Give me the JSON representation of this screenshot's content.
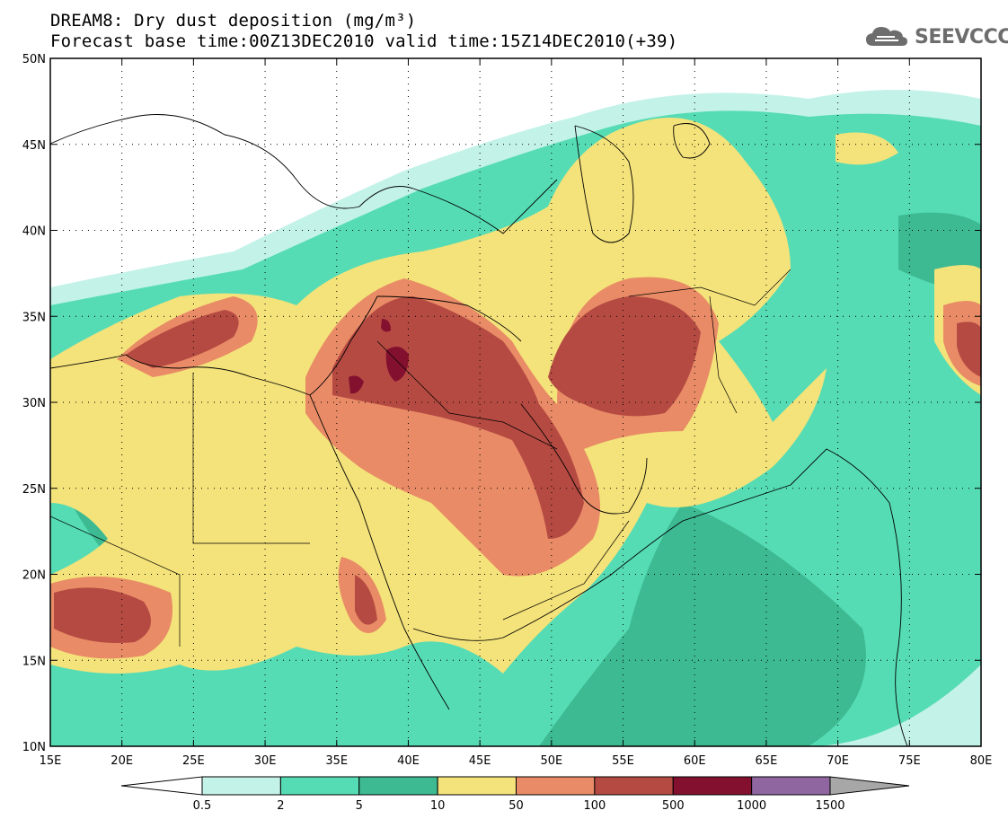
{
  "title": {
    "line1": "DREAM8: Dry dust deposition (mg/m³)",
    "line2": "Forecast base time:00Z13DEC2010 valid time:15Z14DEC2010(+39)"
  },
  "logo": {
    "text": "SEEVCCC",
    "icon": "cloud-icon"
  },
  "map": {
    "region": "North Africa, Middle East, Central Asia",
    "lon_range": [
      15,
      80
    ],
    "lat_range": [
      10,
      50
    ],
    "x_ticks": [
      "15E",
      "20E",
      "25E",
      "30E",
      "35E",
      "40E",
      "45E",
      "50E",
      "55E",
      "60E",
      "65E",
      "70E",
      "75E",
      "80E"
    ],
    "y_ticks": [
      "50N",
      "45N",
      "40N",
      "35N",
      "30N",
      "25N",
      "20N",
      "15N",
      "10N"
    ],
    "grid": true
  },
  "legend": {
    "min_label": "0.5",
    "max_label": "1500",
    "boundaries": [
      "0.5",
      "2",
      "5",
      "10",
      "50",
      "100",
      "500",
      "1000",
      "1500"
    ],
    "colors": [
      "#c3f2e8",
      "#56dcb4",
      "#3dba92",
      "#f4e27a",
      "#e88b66",
      "#b54a42",
      "#82102e",
      "#8f66a0"
    ],
    "under_color": "#ffffff",
    "over_color": "#a7a7a7"
  }
}
